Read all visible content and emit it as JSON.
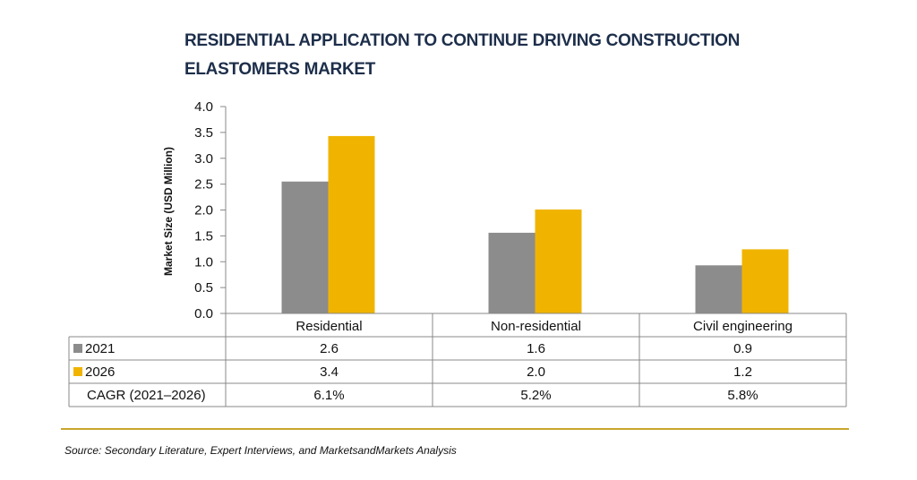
{
  "title_lines": [
    "RESIDENTIAL APPLICATION TO CONTINUE DRIVING CONSTRUCTION",
    "ELASTOMERS MARKET"
  ],
  "source": "Source: Secondary Literature, Expert Interviews, and MarketsandMarkets Analysis",
  "colors": {
    "s2021": "#8c8c8c",
    "s2026": "#f0b400",
    "rule": "#c8a52e",
    "title": "#1d2e4a"
  },
  "chart_data": {
    "type": "bar",
    "categories": [
      "Residential",
      "Non-residential",
      "Civil engineering"
    ],
    "series": [
      {
        "name": "2021",
        "values": [
          2.55,
          1.56,
          0.93
        ]
      },
      {
        "name": "2026",
        "values": [
          3.43,
          2.01,
          1.24
        ]
      }
    ],
    "ylabel": "Market Size (USD Million)",
    "ylim": [
      0,
      4.0
    ],
    "yticks": [
      "0.0",
      "0.5",
      "1.0",
      "1.5",
      "2.0",
      "2.5",
      "3.0",
      "3.5",
      "4.0"
    ],
    "table": {
      "rows": [
        {
          "label": "2021",
          "cells": [
            "2.6",
            "1.6",
            "0.9"
          ]
        },
        {
          "label": "2026",
          "cells": [
            "3.4",
            "2.0",
            "1.2"
          ]
        },
        {
          "label": "CAGR (2021–2026)",
          "cells": [
            "6.1%",
            "5.2%",
            "5.8%"
          ]
        }
      ]
    }
  }
}
